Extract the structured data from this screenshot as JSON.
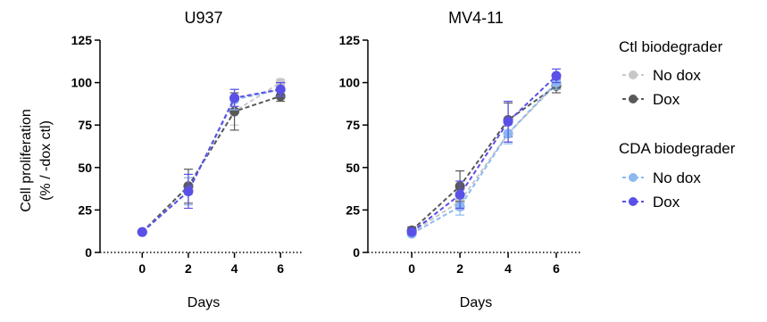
{
  "chart_data": [
    {
      "type": "line",
      "title": "U937",
      "xlabel": "Days",
      "ylabel_lines": [
        "Cell proliferation",
        "(% / -dox ctl)"
      ],
      "x": [
        0,
        2,
        4,
        6
      ],
      "xlim": [
        -1.6,
        7
      ],
      "ylim": [
        0,
        125
      ],
      "yticks": [
        0,
        25,
        50,
        75,
        100,
        125
      ],
      "xticks": [
        0,
        2,
        4,
        6
      ],
      "series": [
        {
          "group": "Ctl biodegrader",
          "name": "No dox",
          "color": "#c8c8c8",
          "values": [
            12,
            39,
            83,
            100
          ],
          "err": [
            1,
            5,
            8,
            2
          ]
        },
        {
          "group": "Ctl biodegrader",
          "name": "Dox",
          "color": "#595959",
          "values": [
            12,
            39,
            83,
            92
          ],
          "err": [
            1,
            10,
            11,
            3
          ]
        },
        {
          "group": "CDA biodegrader",
          "name": "No dox",
          "color": "#8cb8f0",
          "values": [
            12,
            36,
            90,
            96
          ],
          "err": [
            1,
            8,
            6,
            4
          ]
        },
        {
          "group": "CDA biodegrader",
          "name": "Dox",
          "color": "#5a50e8",
          "values": [
            12,
            36,
            91,
            96
          ],
          "err": [
            1,
            10,
            5,
            4
          ]
        }
      ]
    },
    {
      "type": "line",
      "title": "MV4-11",
      "xlabel": "Days",
      "x": [
        0,
        2,
        4,
        6
      ],
      "xlim": [
        -1.6,
        7
      ],
      "ylim": [
        0,
        125
      ],
      "yticks": [
        0,
        25,
        50,
        75,
        100,
        125
      ],
      "xticks": [
        0,
        2,
        4,
        6
      ],
      "series": [
        {
          "group": "Ctl biodegrader",
          "name": "No dox",
          "color": "#c8c8c8",
          "values": [
            12,
            30,
            70,
            99
          ],
          "err": [
            1,
            5,
            5,
            3
          ]
        },
        {
          "group": "Ctl biodegrader",
          "name": "Dox",
          "color": "#595959",
          "values": [
            13,
            39,
            78,
            98
          ],
          "err": [
            2,
            9,
            10,
            4
          ]
        },
        {
          "group": "CDA biodegrader",
          "name": "No dox",
          "color": "#8cb8f0",
          "values": [
            11,
            27,
            70,
            100
          ],
          "err": [
            1,
            5,
            6,
            4
          ]
        },
        {
          "group": "CDA biodegrader",
          "name": "Dox",
          "color": "#5a50e8",
          "values": [
            12,
            34,
            77,
            104
          ],
          "err": [
            1,
            8,
            12,
            4
          ]
        }
      ]
    }
  ],
  "legend": {
    "placement": "right",
    "groups": [
      {
        "title": "Ctl biodegrader",
        "items": [
          {
            "label": "No dox",
            "color": "#c8c8c8"
          },
          {
            "label": "Dox",
            "color": "#595959"
          }
        ]
      },
      {
        "title": "CDA biodegrader",
        "items": [
          {
            "label": "No dox",
            "color": "#8cb8f0"
          },
          {
            "label": "Dox",
            "color": "#5a50e8"
          }
        ]
      }
    ]
  }
}
